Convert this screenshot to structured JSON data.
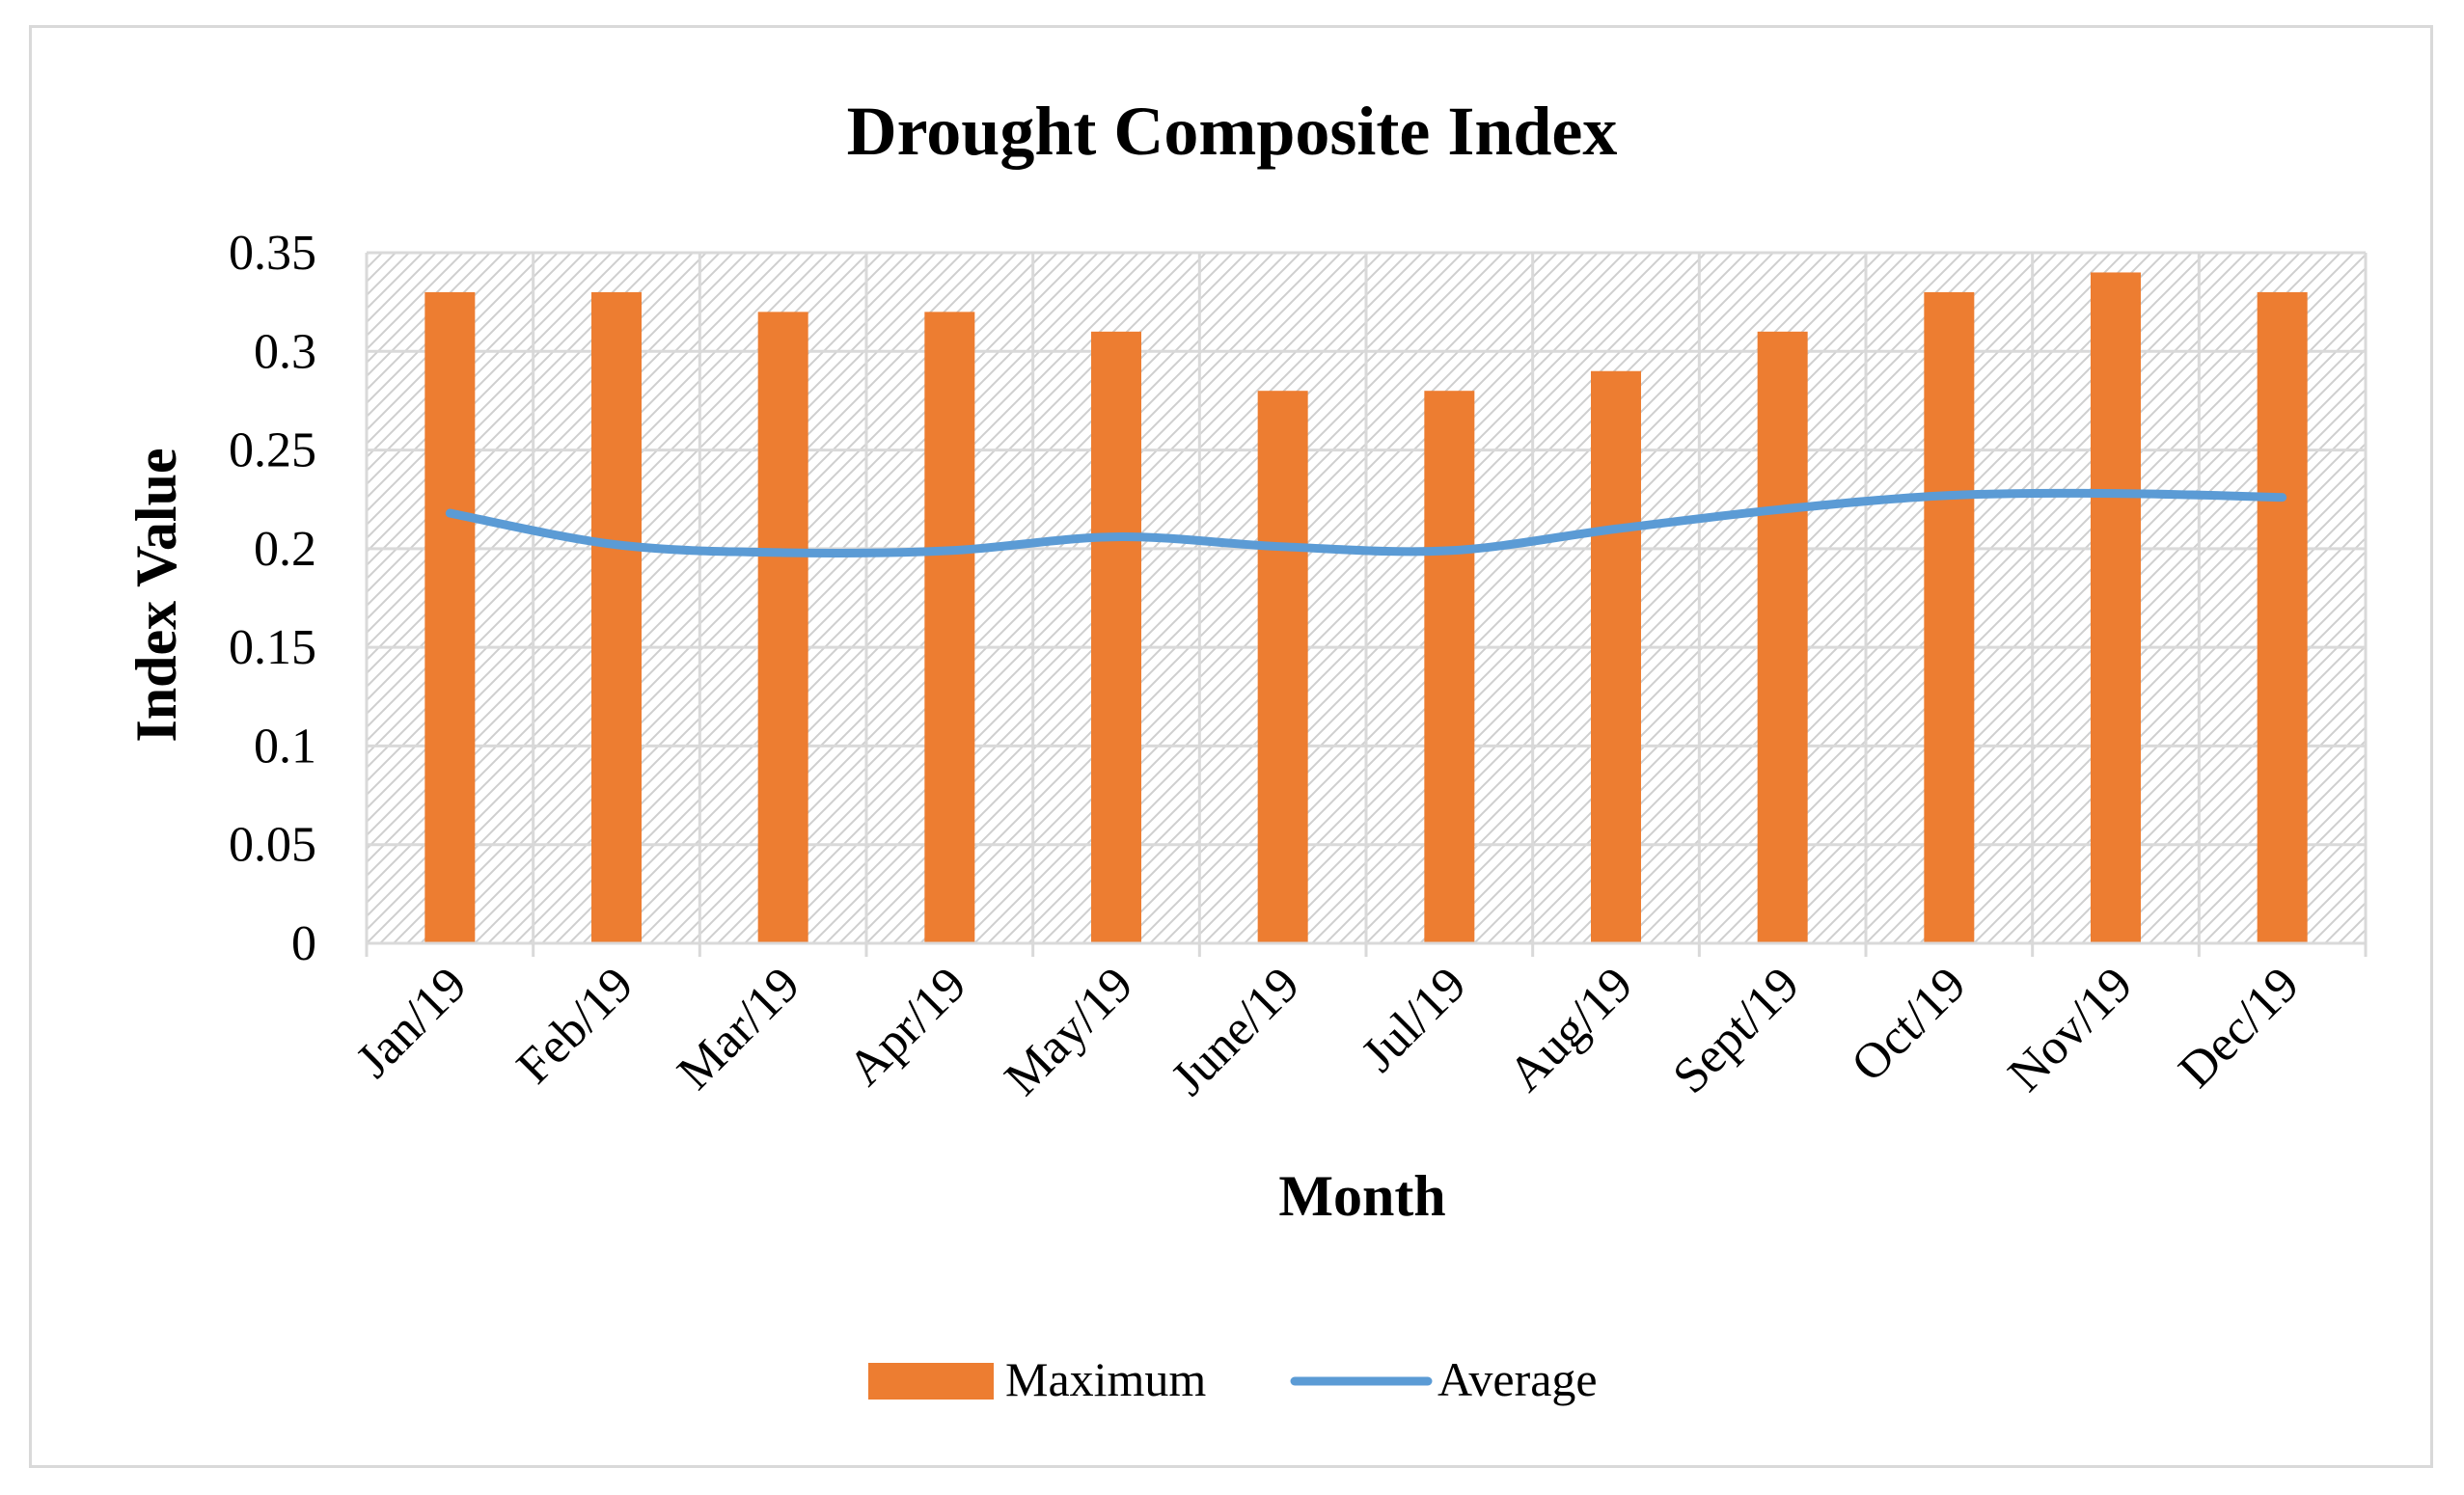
{
  "chart_data": {
    "type": "bar",
    "title": "Drought Composite Index",
    "xlabel": "Month",
    "ylabel": "Index Value",
    "categories": [
      "Jan/19",
      "Feb/19",
      "Mar/19",
      "Apr/19",
      "May/19",
      "June/19",
      "Jul/19",
      "Aug/19",
      "Sept/19",
      "Oct/19",
      "Nov/19",
      "Dec/19"
    ],
    "series": [
      {
        "name": "Maximum",
        "kind": "bar",
        "color": "#ed7d31",
        "values": [
          0.33,
          0.33,
          0.32,
          0.32,
          0.31,
          0.28,
          0.28,
          0.29,
          0.31,
          0.33,
          0.34,
          0.33
        ]
      },
      {
        "name": "Average",
        "kind": "line",
        "smooth": true,
        "color": "#5b9bd5",
        "values": [
          0.218,
          0.202,
          0.198,
          0.199,
          0.206,
          0.201,
          0.199,
          0.21,
          0.22,
          0.227,
          0.228,
          0.226
        ]
      }
    ],
    "ylim": [
      0,
      0.35
    ],
    "yticks": [
      0,
      0.05,
      0.1,
      0.15,
      0.2,
      0.25,
      0.3,
      0.35
    ],
    "ytick_labels": [
      "0",
      "0.05",
      "0.1",
      "0.15",
      "0.2",
      "0.25",
      "0.3",
      "0.35"
    ],
    "grid": true,
    "plot_background": "hatched",
    "legend_position": "bottom"
  }
}
